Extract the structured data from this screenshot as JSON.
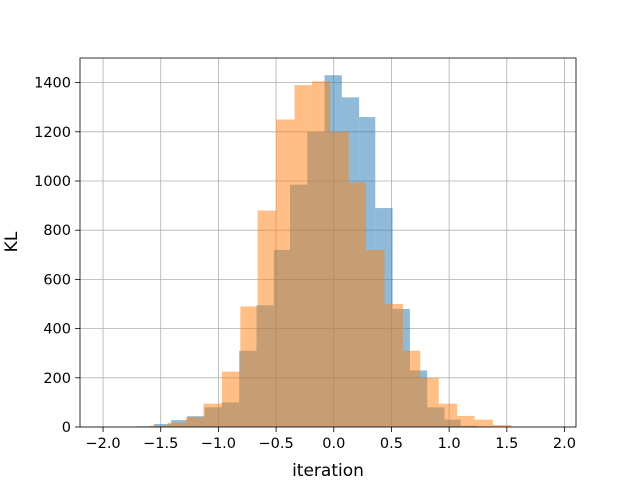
{
  "chart_data": {
    "type": "bar",
    "subtype": "overlapping-histogram",
    "title": "",
    "xlabel": "iteration",
    "ylabel": "KL",
    "xlim": [
      -2.2,
      2.1
    ],
    "ylim": [
      0,
      1500
    ],
    "xticks": [
      -2.0,
      -1.5,
      -1.0,
      -0.5,
      0.0,
      0.5,
      1.0,
      1.5,
      2.0
    ],
    "xtick_labels": [
      "−2.0",
      "−1.5",
      "−1.0",
      "−0.5",
      "0.0",
      "0.5",
      "1.0",
      "1.5",
      "2.0"
    ],
    "yticks": [
      0,
      200,
      400,
      600,
      800,
      1000,
      1200,
      1400
    ],
    "ytick_labels": [
      "0",
      "200",
      "400",
      "600",
      "800",
      "1000",
      "1200",
      "1400"
    ],
    "grid": true,
    "legend": "none",
    "series": [
      {
        "color": "#1f77b4",
        "alpha": 0.5,
        "bin_edges": [
          -1.71,
          -1.56,
          -1.41,
          -1.27,
          -1.12,
          -0.97,
          -0.82,
          -0.67,
          -0.52,
          -0.38,
          -0.23,
          -0.08,
          0.07,
          0.22,
          0.36,
          0.51,
          0.66,
          0.81,
          0.96,
          1.1,
          1.25
        ],
        "counts": [
          3,
          12,
          28,
          44,
          80,
          100,
          310,
          495,
          720,
          985,
          1200,
          1430,
          1340,
          1260,
          890,
          480,
          230,
          80,
          30,
          5
        ]
      },
      {
        "color": "#ff7f0e",
        "alpha": 0.5,
        "bin_edges": [
          -1.6,
          -1.44,
          -1.28,
          -1.13,
          -0.97,
          -0.81,
          -0.66,
          -0.5,
          -0.34,
          -0.19,
          -0.03,
          0.13,
          0.28,
          0.44,
          0.6,
          0.75,
          0.91,
          1.07,
          1.22,
          1.38,
          1.54
        ],
        "counts": [
          5,
          18,
          40,
          95,
          225,
          490,
          880,
          1250,
          1390,
          1405,
          1200,
          995,
          720,
          500,
          310,
          200,
          95,
          45,
          30,
          8
        ]
      }
    ]
  }
}
